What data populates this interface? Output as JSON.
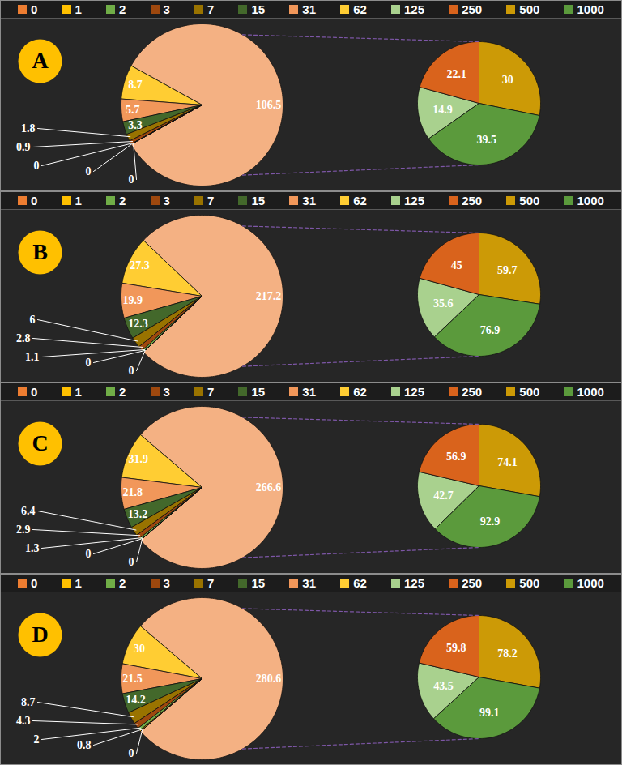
{
  "chart_data": [
    {
      "type": "pie",
      "title": "A",
      "categories": [
        "0",
        "1",
        "2",
        "3",
        "7",
        "15",
        "31",
        "62"
      ],
      "values": [
        0,
        0,
        0,
        0.9,
        1.8,
        3.3,
        5.7,
        8.7
      ],
      "colors": [
        "#ED7D31",
        "#FFC000",
        "#70AD47",
        "#9E480E",
        "#997300",
        "#43682B",
        "#F1975A",
        "#FFCD33"
      ],
      "other": {
        "value": 106.5,
        "color": "#F4B183",
        "categories": [
          "125",
          "250",
          "500",
          "1000"
        ],
        "values": [
          14.9,
          22.1,
          30,
          39.5
        ],
        "colors": [
          "#A9D18E",
          "#D9631C",
          "#CC9A06",
          "#5B9A3C"
        ]
      },
      "legend": "top",
      "data_labels": true
    },
    {
      "type": "pie",
      "title": "B",
      "categories": [
        "0",
        "1",
        "2",
        "3",
        "7",
        "15",
        "31",
        "62"
      ],
      "values": [
        0,
        0,
        1.1,
        2.8,
        6,
        12.3,
        19.9,
        27.3
      ],
      "colors": [
        "#ED7D31",
        "#FFC000",
        "#70AD47",
        "#9E480E",
        "#997300",
        "#43682B",
        "#F1975A",
        "#FFCD33"
      ],
      "other": {
        "value": 217.2,
        "color": "#F4B183",
        "categories": [
          "125",
          "250",
          "500",
          "1000"
        ],
        "values": [
          35.6,
          45,
          59.7,
          76.9
        ],
        "colors": [
          "#A9D18E",
          "#D9631C",
          "#CC9A06",
          "#5B9A3C"
        ]
      },
      "legend": "top",
      "data_labels": true
    },
    {
      "type": "pie",
      "title": "C",
      "categories": [
        "0",
        "1",
        "2",
        "3",
        "7",
        "15",
        "31",
        "62"
      ],
      "values": [
        0,
        0,
        1.3,
        2.9,
        6.4,
        13.2,
        21.8,
        31.9
      ],
      "colors": [
        "#ED7D31",
        "#FFC000",
        "#70AD47",
        "#9E480E",
        "#997300",
        "#43682B",
        "#F1975A",
        "#FFCD33"
      ],
      "other": {
        "value": 266.6,
        "color": "#F4B183",
        "categories": [
          "125",
          "250",
          "500",
          "1000"
        ],
        "values": [
          42.7,
          56.9,
          74.1,
          92.9
        ],
        "colors": [
          "#A9D18E",
          "#D9631C",
          "#CC9A06",
          "#5B9A3C"
        ]
      },
      "legend": "top",
      "data_labels": true
    },
    {
      "type": "pie",
      "title": "D",
      "categories": [
        "0",
        "1",
        "2",
        "3",
        "7",
        "15",
        "31",
        "62"
      ],
      "values": [
        0,
        0.8,
        2,
        4.3,
        8.7,
        14.2,
        21.5,
        30
      ],
      "colors": [
        "#ED7D31",
        "#FFC000",
        "#70AD47",
        "#9E480E",
        "#997300",
        "#43682B",
        "#F1975A",
        "#FFCD33"
      ],
      "other": {
        "value": 280.6,
        "color": "#F4B183",
        "categories": [
          "125",
          "250",
          "500",
          "1000"
        ],
        "values": [
          43.5,
          59.8,
          78.2,
          99.1
        ],
        "colors": [
          "#A9D18E",
          "#D9631C",
          "#CC9A06",
          "#5B9A3C"
        ]
      },
      "legend": "top",
      "data_labels": true
    }
  ]
}
